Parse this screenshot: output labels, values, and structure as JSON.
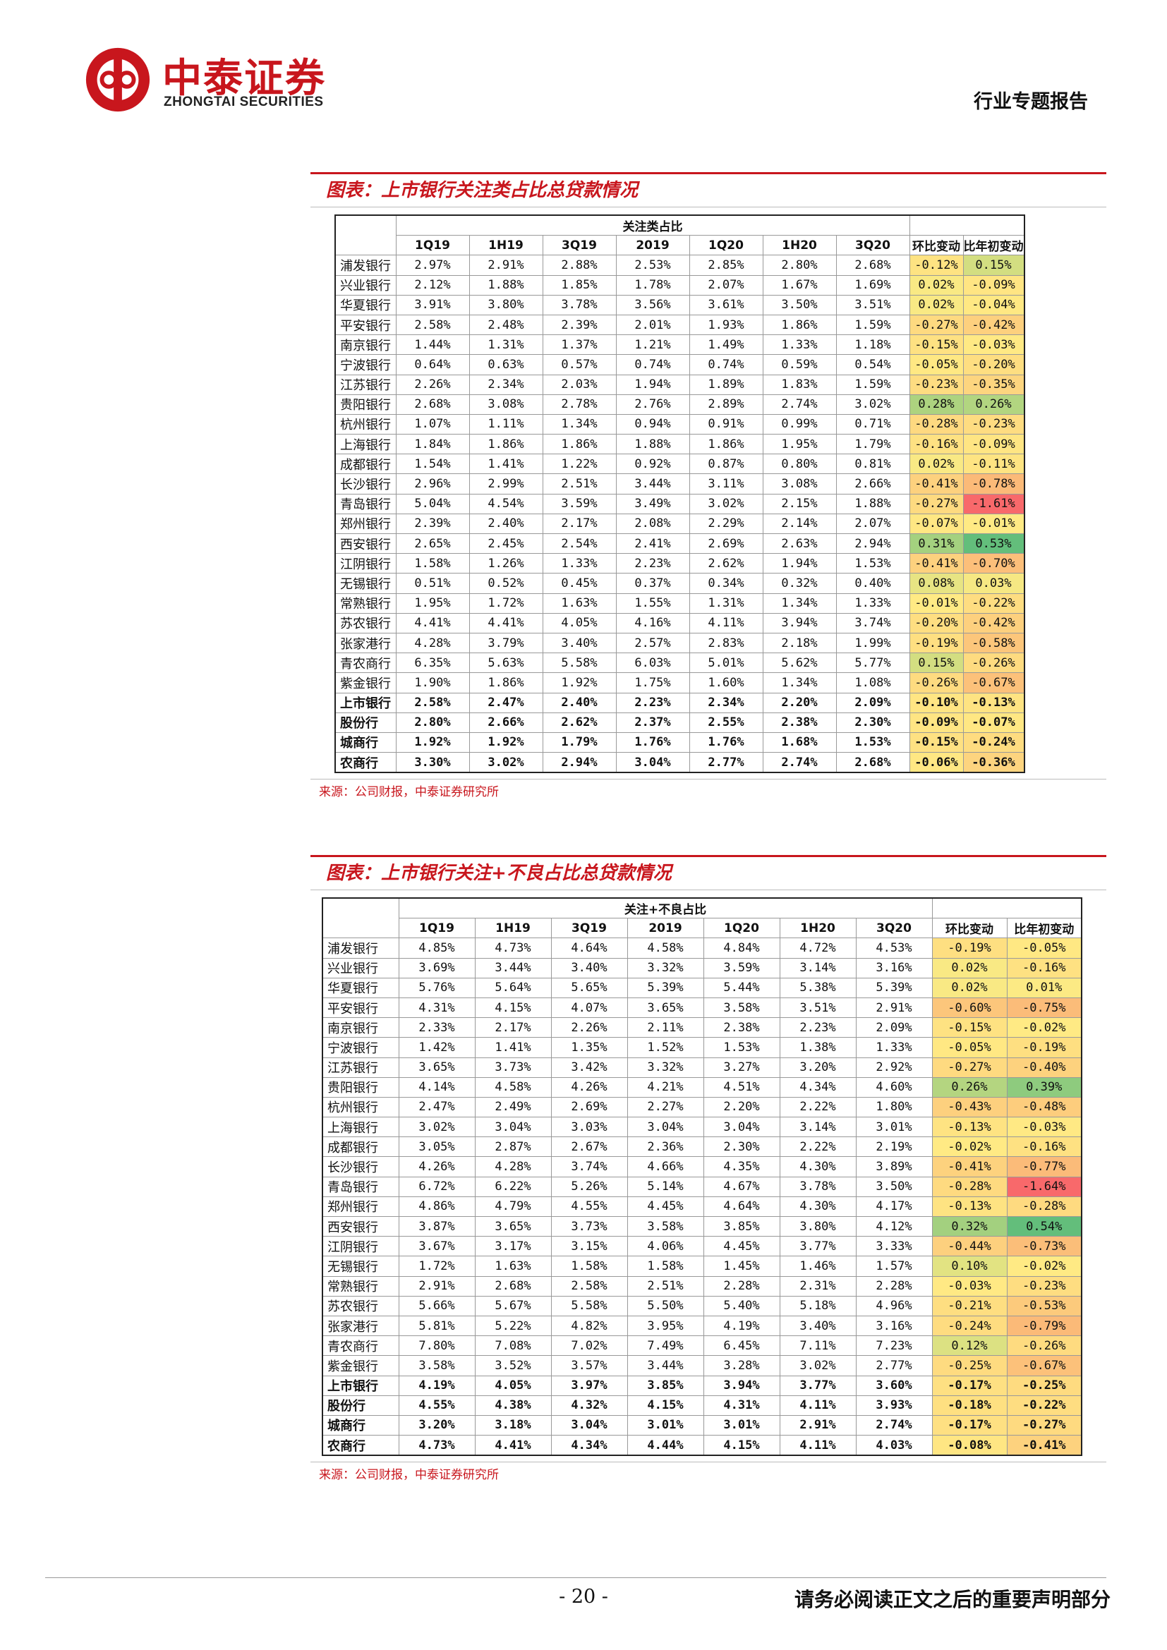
{
  "header": {
    "logo_cn": "中泰证券",
    "logo_en": "ZHONGTAI SECURITIES",
    "report_type": "行业专题报告"
  },
  "colors": {
    "brand_red": "#c8161d",
    "scale_red": "#f8696b",
    "scale_orange": "#fbb878",
    "scale_yellow": "#ffeb84",
    "scale_green": "#63be7b"
  },
  "table1": {
    "title": "图表：上市银行关注类占比总贷款情况",
    "group_header": "关注类占比",
    "columns": [
      "1Q19",
      "1H19",
      "3Q19",
      "2019",
      "1Q20",
      "1H20",
      "3Q20"
    ],
    "chg_headers": [
      "环比变动",
      "比年初变动"
    ],
    "rows": [
      {
        "bank": "浦发银行",
        "v": [
          "2.97%",
          "2.91%",
          "2.88%",
          "2.53%",
          "2.85%",
          "2.80%",
          "2.68%"
        ],
        "c1": "-0.12%",
        "c2": "0.15%",
        "n1": -0.12,
        "n2": 0.15
      },
      {
        "bank": "兴业银行",
        "v": [
          "2.12%",
          "1.88%",
          "1.85%",
          "1.78%",
          "2.07%",
          "1.67%",
          "1.69%"
        ],
        "c1": "0.02%",
        "c2": "-0.09%",
        "n1": 0.02,
        "n2": -0.09
      },
      {
        "bank": "华夏银行",
        "v": [
          "3.91%",
          "3.80%",
          "3.78%",
          "3.56%",
          "3.61%",
          "3.50%",
          "3.51%"
        ],
        "c1": "0.02%",
        "c2": "-0.04%",
        "n1": 0.02,
        "n2": -0.04
      },
      {
        "bank": "平安银行",
        "v": [
          "2.58%",
          "2.48%",
          "2.39%",
          "2.01%",
          "1.93%",
          "1.86%",
          "1.59%"
        ],
        "c1": "-0.27%",
        "c2": "-0.42%",
        "n1": -0.27,
        "n2": -0.42
      },
      {
        "bank": "南京银行",
        "v": [
          "1.44%",
          "1.31%",
          "1.37%",
          "1.21%",
          "1.49%",
          "1.33%",
          "1.18%"
        ],
        "c1": "-0.15%",
        "c2": "-0.03%",
        "n1": -0.15,
        "n2": -0.03
      },
      {
        "bank": "宁波银行",
        "v": [
          "0.64%",
          "0.63%",
          "0.57%",
          "0.74%",
          "0.74%",
          "0.59%",
          "0.54%"
        ],
        "c1": "-0.05%",
        "c2": "-0.20%",
        "n1": -0.05,
        "n2": -0.2
      },
      {
        "bank": "江苏银行",
        "v": [
          "2.26%",
          "2.34%",
          "2.03%",
          "1.94%",
          "1.89%",
          "1.83%",
          "1.59%"
        ],
        "c1": "-0.23%",
        "c2": "-0.35%",
        "n1": -0.23,
        "n2": -0.35
      },
      {
        "bank": "贵阳银行",
        "v": [
          "2.68%",
          "3.08%",
          "2.78%",
          "2.76%",
          "2.89%",
          "2.74%",
          "3.02%"
        ],
        "c1": "0.28%",
        "c2": "0.26%",
        "n1": 0.28,
        "n2": 0.26
      },
      {
        "bank": "杭州银行",
        "v": [
          "1.07%",
          "1.11%",
          "1.34%",
          "0.94%",
          "0.91%",
          "0.99%",
          "0.71%"
        ],
        "c1": "-0.28%",
        "c2": "-0.23%",
        "n1": -0.28,
        "n2": -0.23
      },
      {
        "bank": "上海银行",
        "v": [
          "1.84%",
          "1.86%",
          "1.86%",
          "1.88%",
          "1.86%",
          "1.95%",
          "1.79%"
        ],
        "c1": "-0.16%",
        "c2": "-0.09%",
        "n1": -0.16,
        "n2": -0.09
      },
      {
        "bank": "成都银行",
        "v": [
          "1.54%",
          "1.41%",
          "1.22%",
          "0.92%",
          "0.87%",
          "0.80%",
          "0.81%"
        ],
        "c1": "0.02%",
        "c2": "-0.11%",
        "n1": 0.02,
        "n2": -0.11
      },
      {
        "bank": "长沙银行",
        "v": [
          "2.96%",
          "2.99%",
          "2.51%",
          "3.44%",
          "3.11%",
          "3.08%",
          "2.66%"
        ],
        "c1": "-0.41%",
        "c2": "-0.78%",
        "n1": -0.41,
        "n2": -0.78
      },
      {
        "bank": "青岛银行",
        "v": [
          "5.04%",
          "4.54%",
          "3.59%",
          "3.49%",
          "3.02%",
          "2.15%",
          "1.88%"
        ],
        "c1": "-0.27%",
        "c2": "-1.61%",
        "n1": -0.27,
        "n2": -1.61
      },
      {
        "bank": "郑州银行",
        "v": [
          "2.39%",
          "2.40%",
          "2.17%",
          "2.08%",
          "2.29%",
          "2.14%",
          "2.07%"
        ],
        "c1": "-0.07%",
        "c2": "-0.01%",
        "n1": -0.07,
        "n2": -0.01
      },
      {
        "bank": "西安银行",
        "v": [
          "2.65%",
          "2.45%",
          "2.54%",
          "2.41%",
          "2.69%",
          "2.63%",
          "2.94%"
        ],
        "c1": "0.31%",
        "c2": "0.53%",
        "n1": 0.31,
        "n2": 0.53
      },
      {
        "bank": "江阴银行",
        "v": [
          "1.58%",
          "1.26%",
          "1.33%",
          "2.23%",
          "2.62%",
          "1.94%",
          "1.53%"
        ],
        "c1": "-0.41%",
        "c2": "-0.70%",
        "n1": -0.41,
        "n2": -0.7
      },
      {
        "bank": "无锡银行",
        "v": [
          "0.51%",
          "0.52%",
          "0.45%",
          "0.37%",
          "0.34%",
          "0.32%",
          "0.40%"
        ],
        "c1": "0.08%",
        "c2": "0.03%",
        "n1": 0.08,
        "n2": 0.03
      },
      {
        "bank": "常熟银行",
        "v": [
          "1.95%",
          "1.72%",
          "1.63%",
          "1.55%",
          "1.31%",
          "1.34%",
          "1.33%"
        ],
        "c1": "-0.01%",
        "c2": "-0.22%",
        "n1": -0.01,
        "n2": -0.22
      },
      {
        "bank": "苏农银行",
        "v": [
          "4.41%",
          "4.41%",
          "4.05%",
          "4.16%",
          "4.11%",
          "3.94%",
          "3.74%"
        ],
        "c1": "-0.20%",
        "c2": "-0.42%",
        "n1": -0.2,
        "n2": -0.42
      },
      {
        "bank": "张家港行",
        "v": [
          "4.28%",
          "3.79%",
          "3.40%",
          "2.57%",
          "2.83%",
          "2.18%",
          "1.99%"
        ],
        "c1": "-0.19%",
        "c2": "-0.58%",
        "n1": -0.19,
        "n2": -0.58
      },
      {
        "bank": "青农商行",
        "v": [
          "6.35%",
          "5.63%",
          "5.58%",
          "6.03%",
          "5.01%",
          "5.62%",
          "5.77%"
        ],
        "c1": "0.15%",
        "c2": "-0.26%",
        "n1": 0.15,
        "n2": -0.26
      },
      {
        "bank": "紫金银行",
        "v": [
          "1.90%",
          "1.86%",
          "1.92%",
          "1.75%",
          "1.60%",
          "1.34%",
          "1.08%"
        ],
        "c1": "-0.26%",
        "c2": "-0.67%",
        "n1": -0.26,
        "n2": -0.67
      },
      {
        "bank": "上市银行",
        "bold": true,
        "v": [
          "2.58%",
          "2.47%",
          "2.40%",
          "2.23%",
          "2.34%",
          "2.20%",
          "2.09%"
        ],
        "c1": "-0.10%",
        "c2": "-0.13%",
        "n1": -0.1,
        "n2": -0.13
      },
      {
        "bank": "股份行",
        "bold": true,
        "v": [
          "2.80%",
          "2.66%",
          "2.62%",
          "2.37%",
          "2.55%",
          "2.38%",
          "2.30%"
        ],
        "c1": "-0.09%",
        "c2": "-0.07%",
        "n1": -0.09,
        "n2": -0.07
      },
      {
        "bank": "城商行",
        "bold": true,
        "v": [
          "1.92%",
          "1.92%",
          "1.79%",
          "1.76%",
          "1.76%",
          "1.68%",
          "1.53%"
        ],
        "c1": "-0.15%",
        "c2": "-0.24%",
        "n1": -0.15,
        "n2": -0.24
      },
      {
        "bank": "农商行",
        "bold": true,
        "v": [
          "3.30%",
          "3.02%",
          "2.94%",
          "3.04%",
          "2.77%",
          "2.74%",
          "2.68%"
        ],
        "c1": "-0.06%",
        "c2": "-0.36%",
        "n1": -0.06,
        "n2": -0.36
      }
    ],
    "source": "来源：公司财报，中泰证券研究所"
  },
  "table2": {
    "title": "图表：上市银行关注+不良占比总贷款情况",
    "group_header": "关注+不良占比",
    "columns": [
      "1Q19",
      "1H19",
      "3Q19",
      "2019",
      "1Q20",
      "1H20",
      "3Q20"
    ],
    "chg_headers": [
      "环比变动",
      "比年初变动"
    ],
    "rows": [
      {
        "bank": "浦发银行",
        "v": [
          "4.85%",
          "4.73%",
          "4.64%",
          "4.58%",
          "4.84%",
          "4.72%",
          "4.53%"
        ],
        "c1": "-0.19%",
        "c2": "-0.05%",
        "n1": -0.19,
        "n2": -0.05
      },
      {
        "bank": "兴业银行",
        "v": [
          "3.69%",
          "3.44%",
          "3.40%",
          "3.32%",
          "3.59%",
          "3.14%",
          "3.16%"
        ],
        "c1": "0.02%",
        "c2": "-0.16%",
        "n1": 0.02,
        "n2": -0.16
      },
      {
        "bank": "华夏银行",
        "v": [
          "5.76%",
          "5.64%",
          "5.65%",
          "5.39%",
          "5.44%",
          "5.38%",
          "5.39%"
        ],
        "c1": "0.02%",
        "c2": "0.01%",
        "n1": 0.02,
        "n2": 0.01
      },
      {
        "bank": "平安银行",
        "v": [
          "4.31%",
          "4.15%",
          "4.07%",
          "3.65%",
          "3.58%",
          "3.51%",
          "2.91%"
        ],
        "c1": "-0.60%",
        "c2": "-0.75%",
        "n1": -0.6,
        "n2": -0.75
      },
      {
        "bank": "南京银行",
        "v": [
          "2.33%",
          "2.17%",
          "2.26%",
          "2.11%",
          "2.38%",
          "2.23%",
          "2.09%"
        ],
        "c1": "-0.15%",
        "c2": "-0.02%",
        "n1": -0.15,
        "n2": -0.02
      },
      {
        "bank": "宁波银行",
        "v": [
          "1.42%",
          "1.41%",
          "1.35%",
          "1.52%",
          "1.53%",
          "1.38%",
          "1.33%"
        ],
        "c1": "-0.05%",
        "c2": "-0.19%",
        "n1": -0.05,
        "n2": -0.19
      },
      {
        "bank": "江苏银行",
        "v": [
          "3.65%",
          "3.73%",
          "3.42%",
          "3.32%",
          "3.27%",
          "3.20%",
          "2.92%"
        ],
        "c1": "-0.27%",
        "c2": "-0.40%",
        "n1": -0.27,
        "n2": -0.4
      },
      {
        "bank": "贵阳银行",
        "v": [
          "4.14%",
          "4.58%",
          "4.26%",
          "4.21%",
          "4.51%",
          "4.34%",
          "4.60%"
        ],
        "c1": "0.26%",
        "c2": "0.39%",
        "n1": 0.26,
        "n2": 0.39
      },
      {
        "bank": "杭州银行",
        "v": [
          "2.47%",
          "2.49%",
          "2.69%",
          "2.27%",
          "2.20%",
          "2.22%",
          "1.80%"
        ],
        "c1": "-0.43%",
        "c2": "-0.48%",
        "n1": -0.43,
        "n2": -0.48
      },
      {
        "bank": "上海银行",
        "v": [
          "3.02%",
          "3.04%",
          "3.03%",
          "3.04%",
          "3.04%",
          "3.14%",
          "3.01%"
        ],
        "c1": "-0.13%",
        "c2": "-0.03%",
        "n1": -0.13,
        "n2": -0.03
      },
      {
        "bank": "成都银行",
        "v": [
          "3.05%",
          "2.87%",
          "2.67%",
          "2.36%",
          "2.30%",
          "2.22%",
          "2.19%"
        ],
        "c1": "-0.02%",
        "c2": "-0.16%",
        "n1": -0.02,
        "n2": -0.16
      },
      {
        "bank": "长沙银行",
        "v": [
          "4.26%",
          "4.28%",
          "3.74%",
          "4.66%",
          "4.35%",
          "4.30%",
          "3.89%"
        ],
        "c1": "-0.41%",
        "c2": "-0.77%",
        "n1": -0.41,
        "n2": -0.77
      },
      {
        "bank": "青岛银行",
        "v": [
          "6.72%",
          "6.22%",
          "5.26%",
          "5.14%",
          "4.67%",
          "3.78%",
          "3.50%"
        ],
        "c1": "-0.28%",
        "c2": "-1.64%",
        "n1": -0.28,
        "n2": -1.64
      },
      {
        "bank": "郑州银行",
        "v": [
          "4.86%",
          "4.79%",
          "4.55%",
          "4.45%",
          "4.64%",
          "4.30%",
          "4.17%"
        ],
        "c1": "-0.13%",
        "c2": "-0.28%",
        "n1": -0.13,
        "n2": -0.28
      },
      {
        "bank": "西安银行",
        "v": [
          "3.87%",
          "3.65%",
          "3.73%",
          "3.58%",
          "3.85%",
          "3.80%",
          "4.12%"
        ],
        "c1": "0.32%",
        "c2": "0.54%",
        "n1": 0.32,
        "n2": 0.54
      },
      {
        "bank": "江阴银行",
        "v": [
          "3.67%",
          "3.17%",
          "3.15%",
          "4.06%",
          "4.45%",
          "3.77%",
          "3.33%"
        ],
        "c1": "-0.44%",
        "c2": "-0.73%",
        "n1": -0.44,
        "n2": -0.73
      },
      {
        "bank": "无锡银行",
        "v": [
          "1.72%",
          "1.63%",
          "1.58%",
          "1.58%",
          "1.45%",
          "1.46%",
          "1.57%"
        ],
        "c1": "0.10%",
        "c2": "-0.02%",
        "n1": 0.1,
        "n2": -0.02
      },
      {
        "bank": "常熟银行",
        "v": [
          "2.91%",
          "2.68%",
          "2.58%",
          "2.51%",
          "2.28%",
          "2.31%",
          "2.28%"
        ],
        "c1": "-0.03%",
        "c2": "-0.23%",
        "n1": -0.03,
        "n2": -0.23
      },
      {
        "bank": "苏农银行",
        "v": [
          "5.66%",
          "5.67%",
          "5.58%",
          "5.50%",
          "5.40%",
          "5.18%",
          "4.96%"
        ],
        "c1": "-0.21%",
        "c2": "-0.53%",
        "n1": -0.21,
        "n2": -0.53
      },
      {
        "bank": "张家港行",
        "v": [
          "5.81%",
          "5.22%",
          "4.82%",
          "3.95%",
          "4.19%",
          "3.40%",
          "3.16%"
        ],
        "c1": "-0.24%",
        "c2": "-0.79%",
        "n1": -0.24,
        "n2": -0.79
      },
      {
        "bank": "青农商行",
        "v": [
          "7.80%",
          "7.08%",
          "7.02%",
          "7.49%",
          "6.45%",
          "7.11%",
          "7.23%"
        ],
        "c1": "0.12%",
        "c2": "-0.26%",
        "n1": 0.12,
        "n2": -0.26
      },
      {
        "bank": "紫金银行",
        "v": [
          "3.58%",
          "3.52%",
          "3.57%",
          "3.44%",
          "3.28%",
          "3.02%",
          "2.77%"
        ],
        "c1": "-0.25%",
        "c2": "-0.67%",
        "n1": -0.25,
        "n2": -0.67
      },
      {
        "bank": "上市银行",
        "bold": true,
        "v": [
          "4.19%",
          "4.05%",
          "3.97%",
          "3.85%",
          "3.94%",
          "3.77%",
          "3.60%"
        ],
        "c1": "-0.17%",
        "c2": "-0.25%",
        "n1": -0.17,
        "n2": -0.25
      },
      {
        "bank": "股份行",
        "bold": true,
        "v": [
          "4.55%",
          "4.38%",
          "4.32%",
          "4.15%",
          "4.31%",
          "4.11%",
          "3.93%"
        ],
        "c1": "-0.18%",
        "c2": "-0.22%",
        "n1": -0.18,
        "n2": -0.22
      },
      {
        "bank": "城商行",
        "bold": true,
        "v": [
          "3.20%",
          "3.18%",
          "3.04%",
          "3.01%",
          "3.01%",
          "2.91%",
          "2.74%"
        ],
        "c1": "-0.17%",
        "c2": "-0.27%",
        "n1": -0.17,
        "n2": -0.27
      },
      {
        "bank": "农商行",
        "bold": true,
        "v": [
          "4.73%",
          "4.41%",
          "4.34%",
          "4.44%",
          "4.15%",
          "4.11%",
          "4.03%"
        ],
        "c1": "-0.08%",
        "c2": "-0.41%",
        "n1": -0.08,
        "n2": -0.41
      }
    ],
    "source": "来源：公司财报，中泰证券研究所"
  },
  "footer": {
    "page_number": "- 20 -",
    "disclaimer": "请务必阅读正文之后的重要声明部分"
  }
}
